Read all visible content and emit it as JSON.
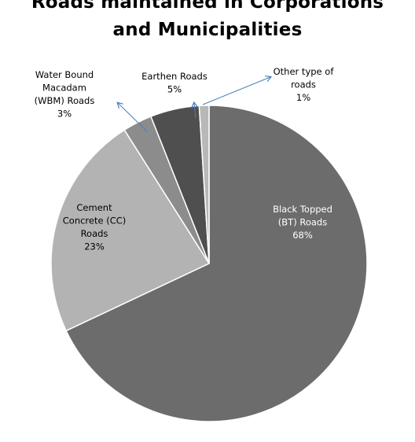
{
  "chart_data": {
    "type": "pie",
    "title_lines": [
      "Roads  maintained in Corporations",
      "and Municipalities"
    ],
    "slices": [
      {
        "key": "bt",
        "label_lines": [
          "Black Topped",
          "(BT) Roads"
        ],
        "value": 68,
        "pct_label": "68%",
        "color": "#6c6c6c",
        "text_color": "#ffffff"
      },
      {
        "key": "cc",
        "label_lines": [
          "Cement",
          "Concrete (CC)",
          "Roads"
        ],
        "value": 23,
        "pct_label": "23%",
        "color": "#b3b3b3",
        "text_color": "#000000"
      },
      {
        "key": "wbm",
        "label_lines": [
          "Water Bound",
          "Macadam",
          "(WBM) Roads"
        ],
        "value": 3,
        "pct_label": "3%",
        "color": "#8c8c8c",
        "text_color": "#000000"
      },
      {
        "key": "earth",
        "label_lines": [
          "Earthen Roads"
        ],
        "value": 5,
        "pct_label": "5%",
        "color": "#4f4f4f",
        "text_color": "#000000"
      },
      {
        "key": "other",
        "label_lines": [
          "Other type of",
          "roads"
        ],
        "value": 1,
        "pct_label": "1%",
        "color": "#b8b8b8",
        "text_color": "#000000"
      }
    ],
    "leader_color": "#4a7ebb"
  }
}
